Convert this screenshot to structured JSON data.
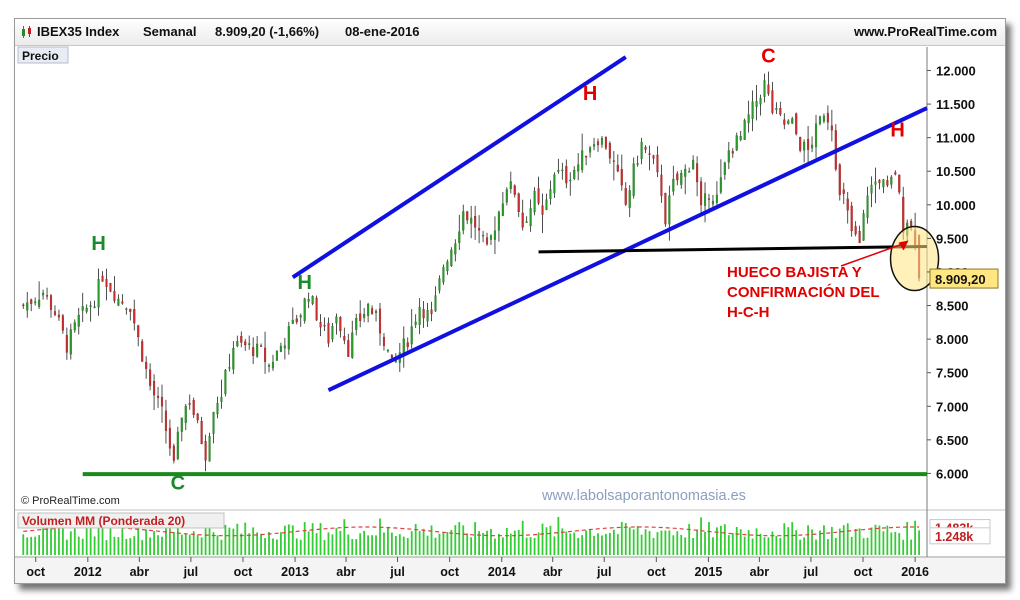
{
  "header": {
    "instrument": "IBEX35 Index",
    "period": "Semanal",
    "quote": "8.909,20 (-1,66%)",
    "date": "08-ene-2016",
    "source": "www.ProRealTime.com"
  },
  "panels": {
    "price_label": "Precio",
    "volume_label": "Volumen MM (Ponderada 20)",
    "copyright": "© ProRealTime.com",
    "watermark": "www.labolsaporantonomasia.es"
  },
  "annotations": {
    "gap_text": [
      "HUECO BAJISTA Y",
      "CONFIRMACIÓN DEL",
      "H-C-H"
    ],
    "pattern_labels": [
      {
        "text": "H",
        "color": "#1a8a2a",
        "date": "2012-01-20",
        "price": 9330
      },
      {
        "text": "C",
        "color": "#1a8a2a",
        "date": "2012-06-08",
        "price": 5760
      },
      {
        "text": "H",
        "color": "#1a8a2a",
        "date": "2013-01-18",
        "price": 8750
      },
      {
        "text": "C",
        "color": "#e00000",
        "date": "2015-04-17",
        "price": 12120
      },
      {
        "text": "H",
        "color": "#e00000",
        "date": "2014-06-06",
        "price": 11560
      },
      {
        "text": "H",
        "color": "#e00000",
        "date": "2015-12-01",
        "price": 11020
      }
    ]
  },
  "colors": {
    "channel": "#1010e0",
    "support": "#1a8a1a",
    "neckline": "#000000",
    "annotation": "#e00000",
    "last_price_box": "#ffe680",
    "volume_bar": "#33cc33",
    "volume_ma": "#e04040"
  },
  "chart_data": [
    {
      "type": "candlestick",
      "title": "IBEX35 Index",
      "frequency": "weekly",
      "ylabel": "Precio",
      "ylim": [
        5500,
        12350
      ],
      "y_ticks": [
        "12.000",
        "11.500",
        "11.000",
        "10.500",
        "10.000",
        "9.500",
        "9.000",
        "8.500",
        "8.000",
        "7.500",
        "7.000",
        "6.500",
        "6.000"
      ],
      "y_tick_values": [
        12000,
        11500,
        11000,
        10500,
        10000,
        9500,
        9000,
        8500,
        8000,
        7500,
        7000,
        6500,
        6000
      ],
      "x_range": [
        "2011-09-05",
        "2016-01-22"
      ],
      "x_ticks": [
        {
          "label": "oct",
          "date": "2011-10-01"
        },
        {
          "label": "2012",
          "date": "2012-01-01"
        },
        {
          "label": "abr",
          "date": "2012-04-01"
        },
        {
          "label": "jul",
          "date": "2012-07-01"
        },
        {
          "label": "oct",
          "date": "2012-10-01"
        },
        {
          "label": "2013",
          "date": "2013-01-01"
        },
        {
          "label": "abr",
          "date": "2013-04-01"
        },
        {
          "label": "jul",
          "date": "2013-07-01"
        },
        {
          "label": "oct",
          "date": "2013-10-01"
        },
        {
          "label": "2014",
          "date": "2014-01-01"
        },
        {
          "label": "abr",
          "date": "2014-04-01"
        },
        {
          "label": "jul",
          "date": "2014-07-01"
        },
        {
          "label": "oct",
          "date": "2014-10-01"
        },
        {
          "label": "2015",
          "date": "2015-01-01"
        },
        {
          "label": "abr",
          "date": "2015-04-01"
        },
        {
          "label": "jul",
          "date": "2015-07-01"
        },
        {
          "label": "oct",
          "date": "2015-10-01"
        },
        {
          "label": "2016",
          "date": "2016-01-01"
        }
      ],
      "last_price": {
        "label": "8.909,20",
        "value": 8909.2
      },
      "close_anchors": [
        [
          "2011-09-09",
          8500
        ],
        [
          "2011-10-14",
          8700
        ],
        [
          "2011-11-04",
          8400
        ],
        [
          "2011-11-25",
          7900
        ],
        [
          "2011-12-16",
          8300
        ],
        [
          "2012-01-13",
          8600
        ],
        [
          "2012-01-27",
          8950
        ],
        [
          "2012-02-24",
          8600
        ],
        [
          "2012-03-16",
          8500
        ],
        [
          "2012-03-30",
          8000
        ],
        [
          "2012-04-20",
          7300
        ],
        [
          "2012-05-11",
          6900
        ],
        [
          "2012-05-25",
          6400
        ],
        [
          "2012-06-01",
          6100
        ],
        [
          "2012-06-15",
          6900
        ],
        [
          "2012-06-29",
          7100
        ],
        [
          "2012-07-13",
          6700
        ],
        [
          "2012-07-27",
          6300
        ],
        [
          "2012-08-10",
          7000
        ],
        [
          "2012-08-24",
          7200
        ],
        [
          "2012-09-14",
          7900
        ],
        [
          "2012-10-05",
          7900
        ],
        [
          "2012-11-02",
          7800
        ],
        [
          "2012-11-16",
          7600
        ],
        [
          "2012-12-07",
          7900
        ],
        [
          "2012-12-21",
          8100
        ],
        [
          "2013-01-11",
          8400
        ],
        [
          "2013-01-25",
          8700
        ],
        [
          "2013-02-15",
          8200
        ],
        [
          "2013-03-01",
          8000
        ],
        [
          "2013-03-15",
          8400
        ],
        [
          "2013-04-05",
          7850
        ],
        [
          "2013-04-19",
          8200
        ],
        [
          "2013-05-10",
          8500
        ],
        [
          "2013-05-24",
          8300
        ],
        [
          "2013-06-07",
          8000
        ],
        [
          "2013-06-21",
          7600
        ],
        [
          "2013-07-05",
          7800
        ],
        [
          "2013-07-19",
          8000
        ],
        [
          "2013-08-09",
          8500
        ],
        [
          "2013-08-30",
          8300
        ],
        [
          "2013-09-20",
          9100
        ],
        [
          "2013-10-11",
          9500
        ],
        [
          "2013-10-25",
          9900
        ],
        [
          "2013-11-15",
          9700
        ],
        [
          "2013-12-06",
          9300
        ],
        [
          "2013-12-20",
          9700
        ],
        [
          "2014-01-10",
          10300
        ],
        [
          "2014-01-24",
          10200
        ],
        [
          "2014-02-07",
          9700
        ],
        [
          "2014-02-28",
          10100
        ],
        [
          "2014-03-14",
          9800
        ],
        [
          "2014-04-04",
          10500
        ],
        [
          "2014-04-25",
          10400
        ],
        [
          "2014-05-16",
          10600
        ],
        [
          "2014-06-06",
          10900
        ],
        [
          "2014-06-20",
          11000
        ],
        [
          "2014-07-04",
          10900
        ],
        [
          "2014-07-18",
          10600
        ],
        [
          "2014-08-08",
          10000
        ],
        [
          "2014-08-22",
          10500
        ],
        [
          "2014-09-05",
          10900
        ],
        [
          "2014-09-26",
          10600
        ],
        [
          "2014-10-10",
          10200
        ],
        [
          "2014-10-17",
          9800
        ],
        [
          "2014-10-31",
          10300
        ],
        [
          "2014-11-21",
          10500
        ],
        [
          "2014-12-05",
          10700
        ],
        [
          "2014-12-19",
          9900
        ],
        [
          "2015-01-02",
          10200
        ],
        [
          "2015-01-16",
          10100
        ],
        [
          "2015-02-06",
          10800
        ],
        [
          "2015-02-27",
          11000
        ],
        [
          "2015-03-13",
          11300
        ],
        [
          "2015-04-10",
          11800
        ],
        [
          "2015-04-24",
          11400
        ],
        [
          "2015-05-15",
          11200
        ],
        [
          "2015-05-29",
          11200
        ],
        [
          "2015-06-12",
          10900
        ],
        [
          "2015-06-26",
          10800
        ],
        [
          "2015-07-10",
          11100
        ],
        [
          "2015-07-24",
          11400
        ],
        [
          "2015-08-07",
          11200
        ],
        [
          "2015-08-21",
          10100
        ],
        [
          "2015-08-28",
          10100
        ],
        [
          "2015-09-11",
          9600
        ],
        [
          "2015-09-25",
          9400
        ],
        [
          "2015-10-09",
          10200
        ],
        [
          "2015-10-30",
          10400
        ],
        [
          "2015-11-13",
          10200
        ],
        [
          "2015-11-27",
          10500
        ],
        [
          "2015-12-11",
          9700
        ],
        [
          "2015-12-18",
          9800
        ],
        [
          "2015-12-31",
          9544
        ],
        [
          "2016-01-08",
          8909
        ]
      ]
    },
    {
      "type": "bar",
      "title": "Volumen MM (Ponderada 20)",
      "frequency": "weekly",
      "ylim": [
        0.7,
        1.9
      ],
      "y_ticks": [
        "1.483k",
        "1.248k"
      ],
      "y_tick_values": [
        1.483,
        1.248
      ],
      "series": [
        {
          "name": "Volumen",
          "type": "bar",
          "range": [
            0.95,
            1.8
          ]
        },
        {
          "name": "MM (Ponderada 20)",
          "type": "dashed-line",
          "range": [
            1.25,
            1.5
          ]
        }
      ]
    }
  ],
  "overlay_lines": [
    {
      "name": "upper-channel",
      "from": [
        "2012-12-28",
        8920
      ],
      "to": [
        "2014-08-08",
        12200
      ]
    },
    {
      "name": "lower-channel",
      "from": [
        "2013-03-01",
        7240
      ],
      "to": [
        "2016-01-22",
        11440
      ]
    },
    {
      "name": "neckline",
      "from": [
        "2014-03-07",
        9300
      ],
      "to": [
        "2016-01-22",
        9380
      ]
    },
    {
      "name": "support",
      "from": [
        "2011-12-23",
        5990
      ],
      "to": [
        "2016-01-22",
        5990
      ]
    }
  ]
}
